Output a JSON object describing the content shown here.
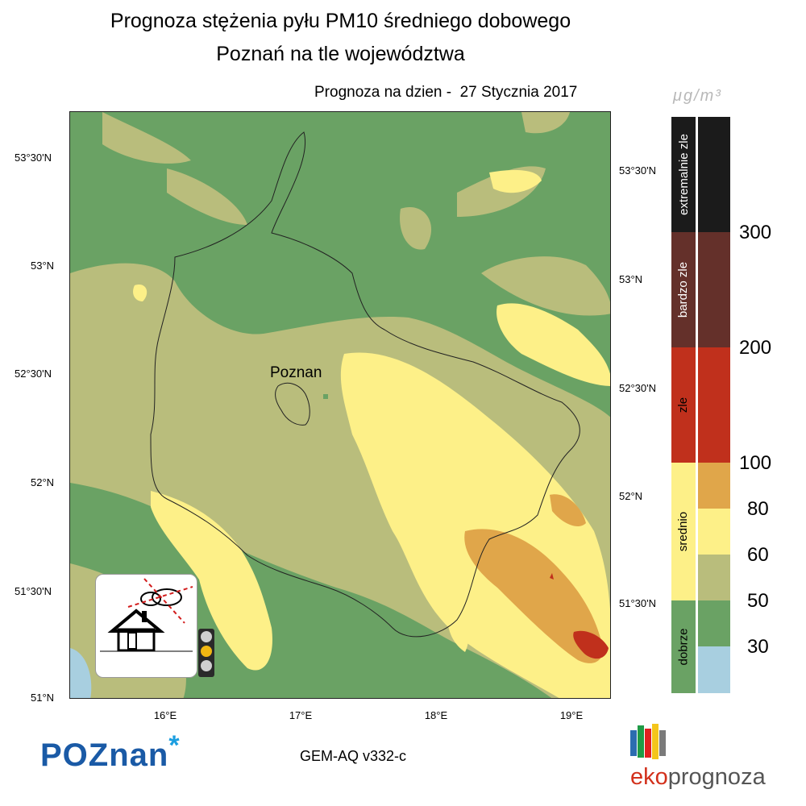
{
  "title": {
    "line1": "Prognoza stężenia pyłu PM10 średniego dobowego",
    "line2": "Poznań na tle województwa",
    "date": "Prognoza na dzien -  27 Stycznia 2017"
  },
  "map": {
    "city_label": "Poznan",
    "lat_labels_left": [
      "53°30'N",
      "53°N",
      "52°30'N",
      "52°N",
      "51°30'N",
      "51°N"
    ],
    "lat_labels_right": [
      "53°30'N",
      "53°N",
      "52°30'N",
      "52°N",
      "51°30'N"
    ],
    "lon_labels": [
      "16°E",
      "17°E",
      "18°E",
      "19°E"
    ],
    "colors": {
      "dobrze_dark": "#6aa264",
      "light_green": "#b9bd7c",
      "yellow": "#fdf088",
      "orange": "#e0a64a",
      "red": "#c0301c",
      "water": "#a8cfe0"
    }
  },
  "legend": {
    "unit": "μg/m³",
    "categories": [
      {
        "label": "extremalnie zle",
        "color": "#1b1b1b"
      },
      {
        "label": "bardzo zle",
        "color": "#64302a"
      },
      {
        "label": "zle",
        "color": "#c0301c"
      },
      {
        "label": "srednio",
        "color": "#fdf088"
      },
      {
        "label": "dobrze",
        "color": "#6aa264"
      }
    ],
    "scale": [
      {
        "color": "#1b1b1b"
      },
      {
        "color": "#64302a"
      },
      {
        "color": "#c0301c"
      },
      {
        "color": "#e0a64a"
      },
      {
        "color": "#fdf088"
      },
      {
        "color": "#b9bd7c"
      },
      {
        "color": "#6aa264"
      },
      {
        "color": "#a8cfe0"
      }
    ],
    "tick_values": [
      "300",
      "200",
      "100",
      "80",
      "60",
      "50",
      "30"
    ]
  },
  "footer": {
    "model": "GEM-AQ v332-c",
    "logo_left": "POZnan",
    "logo_right_a": "eko",
    "logo_right_b": "prognoza"
  }
}
